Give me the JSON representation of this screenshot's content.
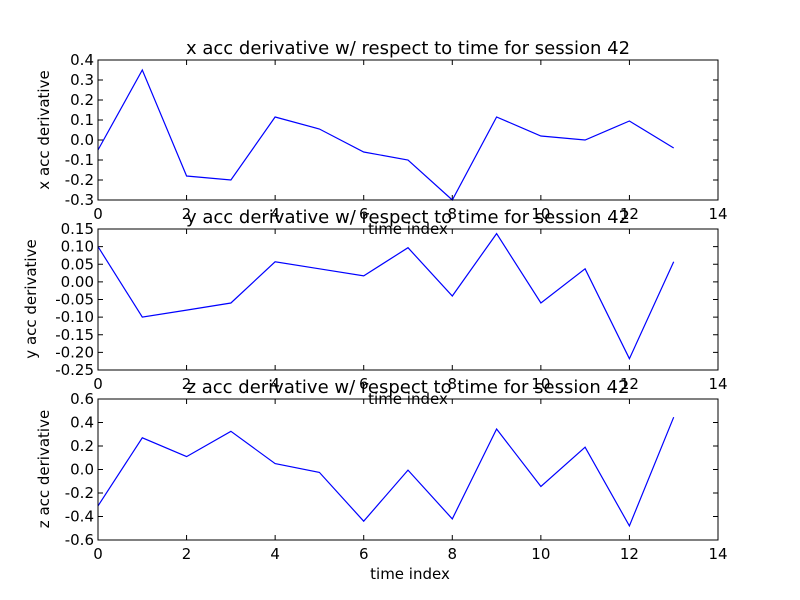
{
  "chart_data": [
    {
      "type": "line",
      "title": "x acc derivative w/ respect to time for session 42",
      "xlabel": "time index",
      "ylabel": "x acc derivative",
      "xlim": [
        0,
        14
      ],
      "ylim": [
        -0.3,
        0.4
      ],
      "xticks": [
        "0",
        "2",
        "4",
        "6",
        "8",
        "10",
        "12",
        "14"
      ],
      "yticks": [
        "-0.3",
        "-0.2",
        "-0.1",
        "0.0",
        "0.1",
        "0.2",
        "0.3",
        "0.4"
      ],
      "grid": false,
      "color": "#0000ff",
      "x": [
        0,
        1,
        2,
        3,
        4,
        5,
        6,
        7,
        8,
        9,
        10,
        11,
        12,
        13
      ],
      "y": [
        -0.05,
        0.35,
        -0.18,
        -0.2,
        0.115,
        0.055,
        -0.06,
        -0.1,
        -0.3,
        0.115,
        0.02,
        0.0,
        0.095,
        -0.04
      ]
    },
    {
      "type": "line",
      "title": "y acc derivative w/ respect to time for session 42",
      "xlabel": "time index",
      "ylabel": "y acc derivative",
      "xlim": [
        0,
        14
      ],
      "ylim": [
        -0.25,
        0.15
      ],
      "xticks": [
        "0",
        "2",
        "4",
        "6",
        "8",
        "10",
        "12",
        "14"
      ],
      "yticks": [
        "-0.25",
        "-0.20",
        "-0.15",
        "-0.10",
        "-0.05",
        "0.00",
        "0.05",
        "0.10",
        "0.15"
      ],
      "grid": false,
      "color": "#0000ff",
      "x": [
        0,
        1,
        2,
        3,
        4,
        5,
        6,
        7,
        8,
        9,
        10,
        11,
        12,
        13
      ],
      "y": [
        0.1,
        -0.1,
        -0.08,
        -0.06,
        0.057,
        0.037,
        0.017,
        0.097,
        -0.04,
        0.137,
        -0.06,
        0.037,
        -0.218,
        0.057
      ]
    },
    {
      "type": "line",
      "title": "z acc derivative w/ respect to time for session 42",
      "xlabel": "time index",
      "ylabel": "z acc derivative",
      "xlim": [
        0,
        14
      ],
      "ylim": [
        -0.6,
        0.6
      ],
      "xticks": [
        "0",
        "2",
        "4",
        "6",
        "8",
        "10",
        "12",
        "14"
      ],
      "yticks": [
        "-0.6",
        "-0.4",
        "-0.2",
        "0.0",
        "0.2",
        "0.4",
        "0.6"
      ],
      "grid": false,
      "color": "#0000ff",
      "x": [
        0,
        1,
        2,
        3,
        4,
        5,
        6,
        7,
        8,
        9,
        10,
        11,
        12,
        13
      ],
      "y": [
        -0.31,
        0.27,
        0.11,
        0.325,
        0.05,
        -0.025,
        -0.44,
        -0.005,
        -0.42,
        0.345,
        -0.145,
        0.19,
        -0.48,
        0.445
      ]
    }
  ]
}
